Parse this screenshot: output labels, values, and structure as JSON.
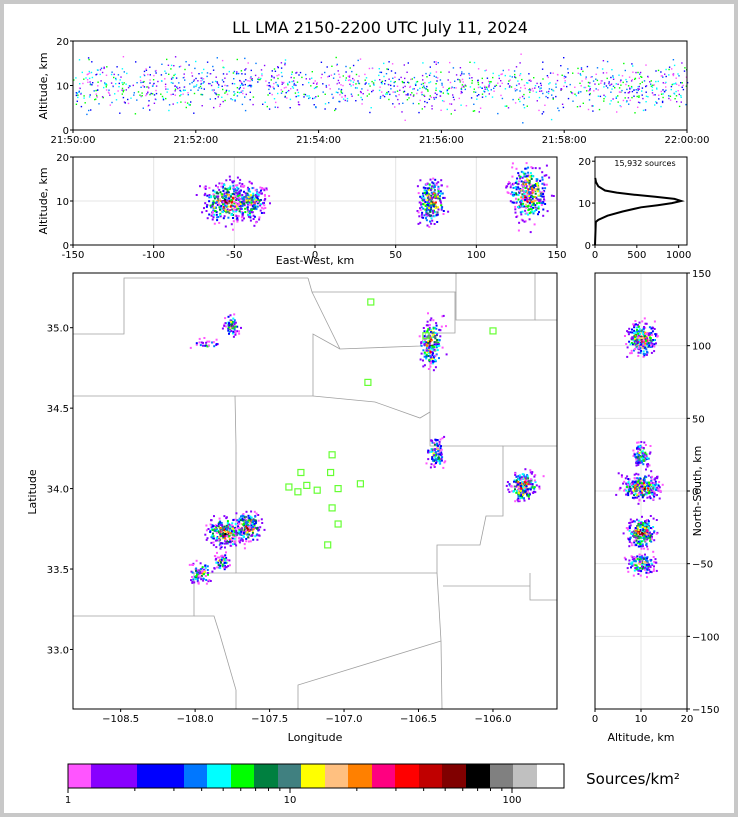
{
  "title": "LL LMA 2150-2200 UTC July 11, 2024",
  "colors": {
    "axis": "#000000",
    "county_lines": "#a0a0a0",
    "grid": "#e4e4e4",
    "station": "#66ff33"
  },
  "chart_data": [
    {
      "panel": "time-altitude",
      "type": "scatter",
      "ylabel": "Altitude, km",
      "xlim": [
        "21:50:00",
        "22:00:00"
      ],
      "ylim": [
        0,
        20
      ],
      "xticks": [
        "21:50:00",
        "21:52:00",
        "21:54:00",
        "21:56:00",
        "21:58:00",
        "22:00:00"
      ],
      "yticks": [
        0,
        10,
        20
      ]
    },
    {
      "panel": "east-west-altitude",
      "type": "heatmap",
      "xlabel": "East-West, km",
      "ylabel": "Altitude, km",
      "xlim": [
        -150,
        150
      ],
      "ylim": [
        0,
        20
      ],
      "xticks": [
        -150,
        -100,
        -50,
        0,
        50,
        100,
        150
      ],
      "yticks": [
        0,
        10,
        20
      ],
      "clusters_km": [
        {
          "x": -55,
          "alt": 10,
          "peak_density": "high"
        },
        {
          "x": -40,
          "alt": 10,
          "peak_density": "medium"
        },
        {
          "x": 72,
          "alt": 10,
          "peak_density": "high"
        },
        {
          "x": 132,
          "alt": 12,
          "peak_density": "high"
        }
      ]
    },
    {
      "panel": "altitude-histogram",
      "type": "line",
      "annotation": "15,932 sources",
      "xlim": [
        0,
        1100
      ],
      "ylim": [
        0,
        21
      ],
      "xticks": [
        0,
        500,
        1000
      ],
      "yticks": [
        0,
        10,
        20
      ],
      "profile": [
        {
          "alt": 5.5,
          "count": 10
        },
        {
          "alt": 6,
          "count": 40
        },
        {
          "alt": 7,
          "count": 150
        },
        {
          "alt": 8,
          "count": 330
        },
        {
          "alt": 9,
          "count": 550
        },
        {
          "alt": 9.5,
          "count": 750
        },
        {
          "alt": 10,
          "count": 920
        },
        {
          "alt": 10.5,
          "count": 1030
        },
        {
          "alt": 11,
          "count": 950
        },
        {
          "alt": 11.5,
          "count": 720
        },
        {
          "alt": 12,
          "count": 470
        },
        {
          "alt": 12.5,
          "count": 260
        },
        {
          "alt": 13,
          "count": 120
        },
        {
          "alt": 14,
          "count": 40
        },
        {
          "alt": 15,
          "count": 12
        },
        {
          "alt": 16,
          "count": 2
        }
      ]
    },
    {
      "panel": "plan-view",
      "type": "heatmap",
      "xlabel": "Longitude",
      "ylabel": "Latitude",
      "xlim": [
        -108.82,
        -105.57
      ],
      "ylim": [
        32.63,
        35.34
      ],
      "xticks": [
        -108.5,
        -108.0,
        -107.5,
        -107.0,
        -106.5,
        -106.0
      ],
      "yticks": [
        33.0,
        33.5,
        34.0,
        34.5,
        35.0
      ],
      "stations": [
        {
          "lon": -106.82,
          "lat": 35.16
        },
        {
          "lon": -106.45,
          "lat": 34.95
        },
        {
          "lon": -106.0,
          "lat": 34.98
        },
        {
          "lon": -106.84,
          "lat": 34.66
        },
        {
          "lon": -107.08,
          "lat": 34.21
        },
        {
          "lon": -107.29,
          "lat": 34.1
        },
        {
          "lon": -107.09,
          "lat": 34.1
        },
        {
          "lon": -107.37,
          "lat": 34.01
        },
        {
          "lon": -107.25,
          "lat": 34.02
        },
        {
          "lon": -107.31,
          "lat": 33.98
        },
        {
          "lon": -107.18,
          "lat": 33.99
        },
        {
          "lon": -107.04,
          "lat": 34.0
        },
        {
          "lon": -106.89,
          "lat": 34.03
        },
        {
          "lon": -107.08,
          "lat": 33.88
        },
        {
          "lon": -107.04,
          "lat": 33.78
        },
        {
          "lon": -107.11,
          "lat": 33.65
        }
      ],
      "clusters_deg": [
        {
          "lon": -107.76,
          "lat": 35.02,
          "peak_density": "medium"
        },
        {
          "lon": -107.93,
          "lat": 34.9,
          "peak_density": "low"
        },
        {
          "lon": -107.8,
          "lat": 33.73,
          "peak_density": "high"
        },
        {
          "lon": -107.65,
          "lat": 33.77,
          "peak_density": "high"
        },
        {
          "lon": -107.83,
          "lat": 33.55,
          "peak_density": "medium"
        },
        {
          "lon": -107.97,
          "lat": 33.48,
          "peak_density": "medium"
        },
        {
          "lon": -106.42,
          "lat": 34.9,
          "peak_density": "high"
        },
        {
          "lon": -106.39,
          "lat": 34.22,
          "peak_density": "medium"
        },
        {
          "lon": -105.8,
          "lat": 34.02,
          "peak_density": "high"
        }
      ]
    },
    {
      "panel": "altitude-north-south",
      "type": "heatmap",
      "xlabel": "Altitude, km",
      "ylabel": "North-South, km",
      "xlim": [
        0,
        20
      ],
      "ylim": [
        -150,
        150
      ],
      "xticks": [
        0,
        10,
        20
      ],
      "yticks": [
        -150,
        -100,
        -50,
        0,
        50,
        100,
        150
      ],
      "clusters_km": [
        {
          "alt": 10,
          "y": 105,
          "peak_density": "high"
        },
        {
          "alt": 10,
          "y": 25,
          "peak_density": "medium"
        },
        {
          "alt": 10,
          "y": 3,
          "peak_density": "high"
        },
        {
          "alt": 10,
          "y": -28,
          "peak_density": "high"
        },
        {
          "alt": 10,
          "y": -50,
          "peak_density": "medium"
        }
      ]
    }
  ],
  "colorbar": {
    "label": "Sources/km²",
    "ticks": [
      "1",
      "10",
      "100"
    ],
    "colors": [
      "#ff55ff",
      "#8800ff",
      "#0000ff",
      "#0077ff",
      "#00ffff",
      "#00ff00",
      "#008040",
      "#408080",
      "#ffff00",
      "#ffc080",
      "#ff8000",
      "#ff0080",
      "#ff0000",
      "#c00000",
      "#800000",
      "#000000",
      "#808080",
      "#c0c0c0",
      "#ffffff"
    ]
  }
}
